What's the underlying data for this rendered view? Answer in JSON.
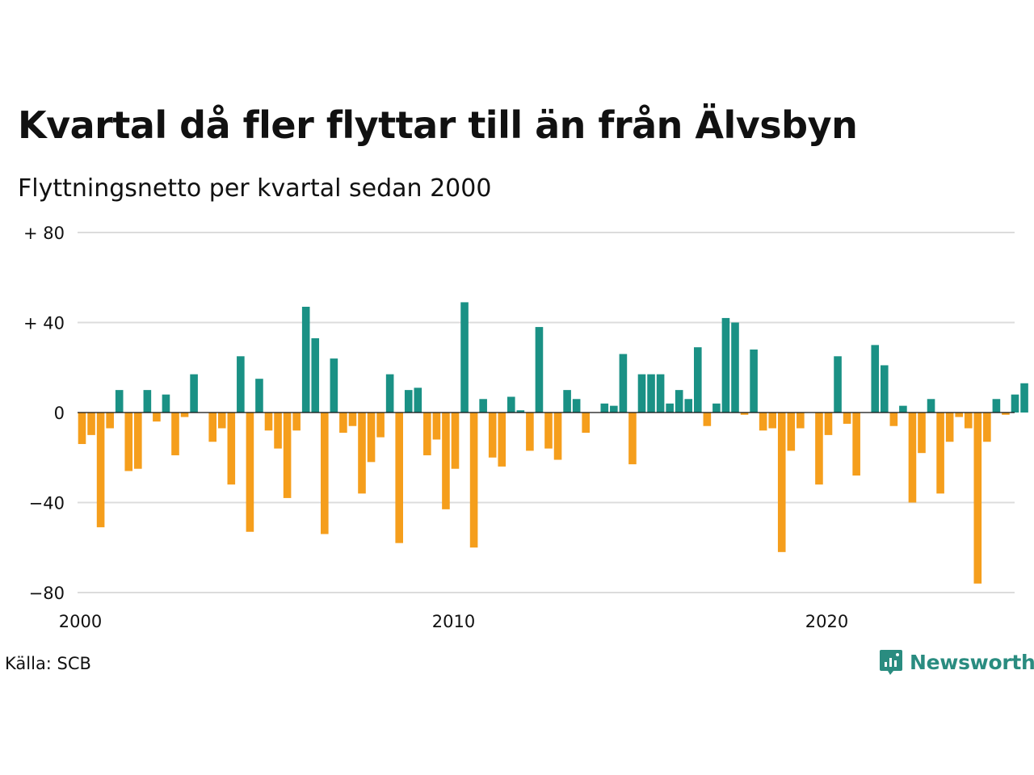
{
  "chart_data": {
    "type": "bar",
    "title": "Kvartal då fler flyttar till än från Älvsbyn",
    "subtitle": "Flyttningsnetto per kvartal sedan 2000",
    "x_tick_labels": [
      "2000",
      "2010",
      "2020"
    ],
    "y_tick_labels": [
      "+ 80",
      "+ 40",
      "0",
      "−40",
      "−80"
    ],
    "ylim": [
      -80,
      80
    ],
    "grid": true,
    "legend": "none",
    "start_year": 2000,
    "values": [
      -14,
      -10,
      -51,
      -7,
      10,
      -26,
      -25,
      10,
      -4,
      8,
      -19,
      -2,
      17,
      0,
      -13,
      -7,
      -32,
      25,
      -53,
      15,
      -8,
      -16,
      -38,
      -8,
      47,
      33,
      -54,
      24,
      -9,
      -6,
      -36,
      -22,
      -11,
      17,
      -58,
      10,
      11,
      -19,
      -12,
      -43,
      -25,
      49,
      -60,
      6,
      -20,
      -24,
      7,
      1,
      -17,
      38,
      -16,
      -21,
      10,
      6,
      -9,
      0,
      4,
      3,
      26,
      -23,
      17,
      17,
      17,
      4,
      10,
      6,
      29,
      -6,
      4,
      42,
      40,
      -1,
      28,
      -8,
      -7,
      -62,
      -17,
      -7,
      0,
      -32,
      -10,
      25,
      -5,
      -28,
      0,
      30,
      21,
      -6,
      3,
      -40,
      -18,
      6,
      -36,
      -13,
      -2,
      -7,
      -76,
      -13,
      6,
      -1,
      8,
      13
    ],
    "colors": {
      "positive": "#1a9185",
      "negative": "#f59e1c"
    }
  },
  "footer": {
    "source": "Källa: SCB",
    "brand": "Newsworthy"
  }
}
